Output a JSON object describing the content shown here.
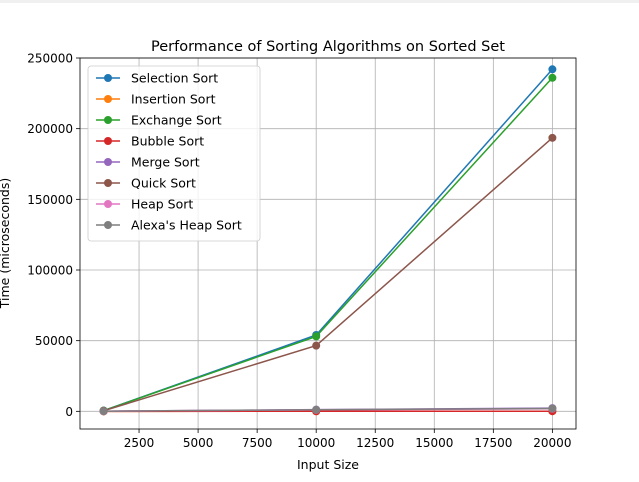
{
  "chart_data": {
    "type": "line",
    "title": "Performance of Sorting Algorithms on Sorted Set",
    "xlabel": "Input Size",
    "ylabel": "Time (microseconds)",
    "xlim": [
      0,
      21000
    ],
    "ylim": [
      -12500,
      250000
    ],
    "xticks": [
      2500,
      5000,
      7500,
      10000,
      12500,
      15000,
      17500,
      20000
    ],
    "yticks": [
      0,
      50000,
      100000,
      150000,
      200000,
      250000
    ],
    "grid": true,
    "legend_position": "upper-left",
    "x": [
      1000,
      10000,
      20000
    ],
    "series": [
      {
        "name": "Selection Sort",
        "color": "#1f77b4",
        "values": [
          500,
          54000,
          242000
        ]
      },
      {
        "name": "Insertion Sort",
        "color": "#ff7f0e",
        "values": [
          0,
          50,
          100
        ]
      },
      {
        "name": "Exchange Sort",
        "color": "#2ca02c",
        "values": [
          500,
          53000,
          236000
        ]
      },
      {
        "name": "Bubble Sort",
        "color": "#d62728",
        "values": [
          0,
          50,
          100
        ]
      },
      {
        "name": "Merge Sort",
        "color": "#9467bd",
        "values": [
          100,
          1200,
          2300
        ]
      },
      {
        "name": "Quick Sort",
        "color": "#8c564b",
        "values": [
          400,
          46500,
          193500
        ]
      },
      {
        "name": "Heap Sort",
        "color": "#e377c2",
        "values": [
          100,
          1000,
          1800
        ]
      },
      {
        "name": "Alexa's Heap Sort",
        "color": "#7f7f7f",
        "values": [
          100,
          1100,
          2000
        ]
      }
    ]
  }
}
